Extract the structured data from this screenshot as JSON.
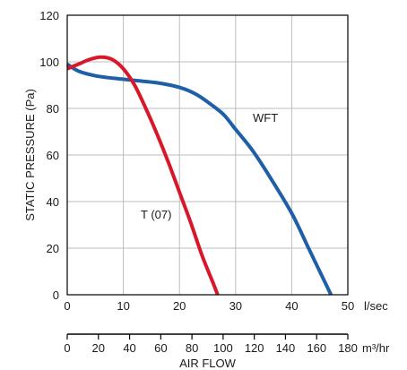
{
  "chart_data": {
    "type": "line",
    "ylabel": "STATIC PRESSURE (Pa)",
    "xlabel": "AIR FLOW",
    "x_unit": "l/sec",
    "x2_unit": "m³/hr",
    "xlim": [
      0,
      50
    ],
    "ylim": [
      0,
      120
    ],
    "x_ticks": [
      0,
      10,
      20,
      30,
      40,
      50
    ],
    "y_ticks": [
      0,
      20,
      40,
      60,
      80,
      100,
      120
    ],
    "x2_ticks": [
      0,
      20,
      40,
      60,
      80,
      100,
      120,
      140,
      160,
      180
    ],
    "grid": true,
    "series": [
      {
        "name": "WFT",
        "color": "#1f5fa8",
        "x": [
          0,
          2,
          5,
          8,
          12,
          16,
          20,
          23,
          26,
          28,
          30,
          33,
          36,
          40,
          43,
          45,
          47
        ],
        "y": [
          99,
          96,
          94,
          93,
          92,
          91,
          89,
          86,
          81,
          77,
          71,
          62,
          51,
          35,
          20,
          10,
          0
        ]
      },
      {
        "name": "T (07)",
        "color": "#d8182a",
        "x": [
          0,
          2,
          4,
          6,
          8,
          10,
          12,
          14,
          16,
          18,
          20,
          22,
          24,
          26,
          26.8
        ],
        "y": [
          97,
          99,
          101,
          102,
          101,
          97,
          90,
          80,
          69,
          57,
          44,
          31,
          17,
          5,
          0
        ]
      }
    ]
  }
}
